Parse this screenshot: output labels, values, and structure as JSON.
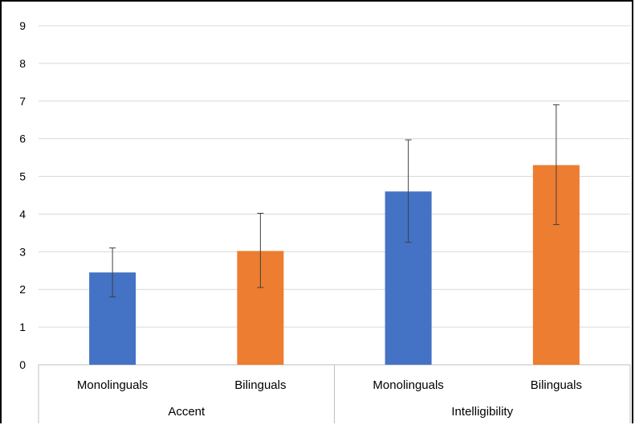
{
  "chart_data": {
    "type": "bar",
    "groups": [
      {
        "label": "Accent",
        "bars": [
          {
            "label": "Monolinguals",
            "value": 2.45,
            "err_low": 1.8,
            "err_high": 3.1,
            "color": "#4472C4"
          },
          {
            "label": "Bilinguals",
            "value": 3.02,
            "err_low": 2.05,
            "err_high": 4.02,
            "color": "#ED7D31"
          }
        ]
      },
      {
        "label": "Intelligibility",
        "bars": [
          {
            "label": "Monolinguals",
            "value": 4.6,
            "err_low": 3.25,
            "err_high": 5.97,
            "color": "#4472C4"
          },
          {
            "label": "Bilinguals",
            "value": 5.3,
            "err_low": 3.72,
            "err_high": 6.9,
            "color": "#ED7D31"
          }
        ]
      }
    ],
    "ylim": [
      0,
      9
    ],
    "yticks": [
      "0",
      "1",
      "2",
      "3",
      "4",
      "5",
      "6",
      "7",
      "8",
      "9"
    ],
    "grid": true,
    "title": "",
    "xlabel": "",
    "ylabel": ""
  }
}
